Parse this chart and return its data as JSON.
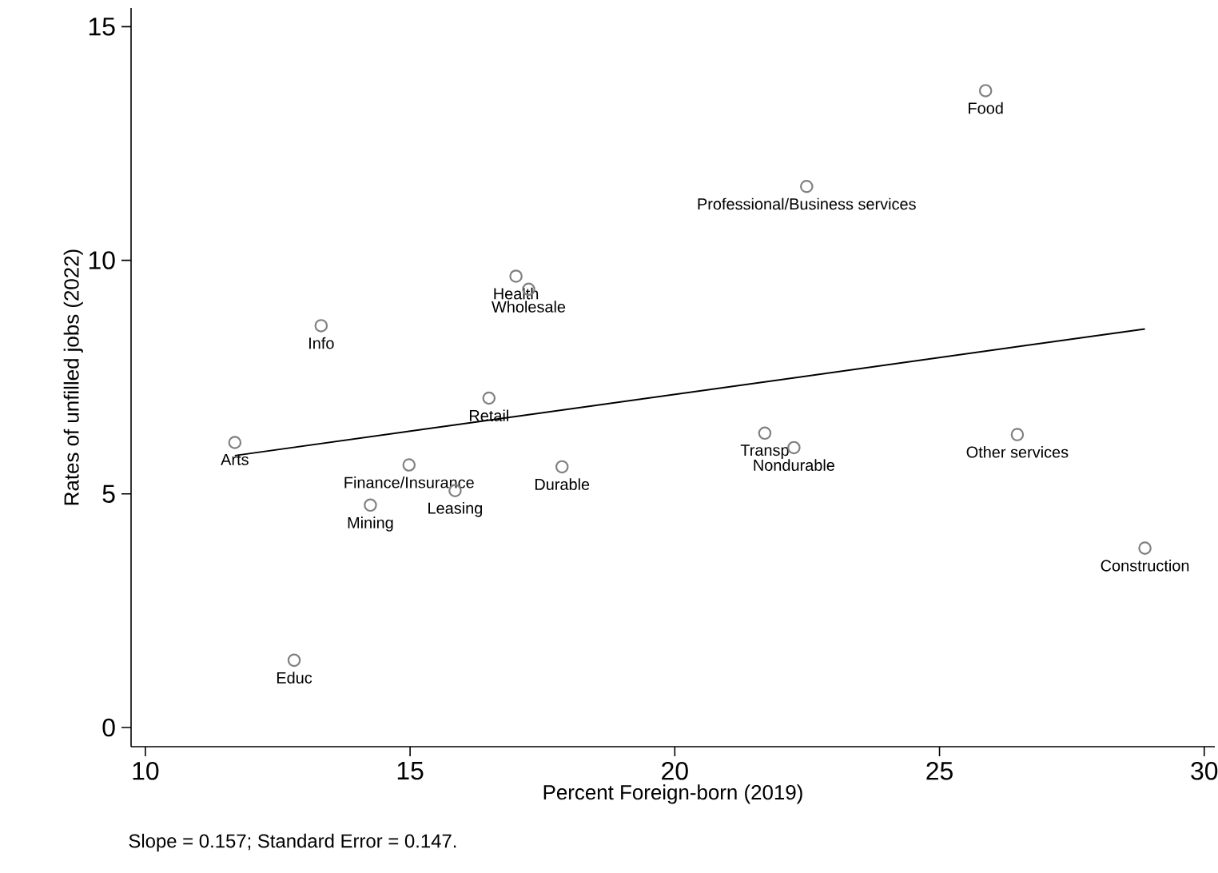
{
  "chart_data": {
    "type": "scatter",
    "xlabel": "Percent Foreign-born (2019)",
    "ylabel": "Rates of unfilled jobs (2022)",
    "xlim": [
      9.73,
      30.2
    ],
    "ylim": [
      -0.41,
      15.4
    ],
    "xticks": [
      10,
      15,
      20,
      25,
      30
    ],
    "yticks": [
      0,
      5,
      10,
      15
    ],
    "grid": false,
    "series": [
      {
        "marker": "circle",
        "color": "#808080",
        "x": [
          25.87,
          22.49,
          17.0,
          17.24,
          13.32,
          16.49,
          11.69,
          21.7,
          22.25,
          26.47,
          14.98,
          15.85,
          17.87,
          14.25,
          28.88,
          12.81
        ],
        "values": [
          13.63,
          11.58,
          9.66,
          9.38,
          8.6,
          7.05,
          6.1,
          6.3,
          5.99,
          6.27,
          5.62,
          5.07,
          5.58,
          4.76,
          3.84,
          1.44
        ]
      },
      {
        "type": "line",
        "color": "#000000",
        "x": [
          11.69,
          28.88
        ],
        "values": [
          5.82,
          8.53
        ]
      }
    ],
    "annotations": [
      {
        "text": "Food",
        "x": 25.87,
        "y": 13.63
      },
      {
        "text": "Professional/Business services",
        "x": 22.49,
        "y": 11.58
      },
      {
        "text": "Health",
        "x": 17.0,
        "y": 9.66
      },
      {
        "text": "Wholesale",
        "x": 17.24,
        "y": 9.38
      },
      {
        "text": "Info",
        "x": 13.32,
        "y": 8.6
      },
      {
        "text": "Retail",
        "x": 16.49,
        "y": 7.05
      },
      {
        "text": "Arts",
        "x": 11.69,
        "y": 6.1
      },
      {
        "text": "Transp",
        "x": 21.7,
        "y": 6.3
      },
      {
        "text": "Nondurable",
        "x": 22.25,
        "y": 5.99
      },
      {
        "text": "Other services",
        "x": 26.47,
        "y": 6.27
      },
      {
        "text": "Finance/Insurance",
        "x": 14.98,
        "y": 5.62
      },
      {
        "text": "Leasing",
        "x": 15.85,
        "y": 5.07
      },
      {
        "text": "Durable",
        "x": 17.87,
        "y": 5.58
      },
      {
        "text": "Mining",
        "x": 14.25,
        "y": 4.76
      },
      {
        "text": "Construction",
        "x": 28.88,
        "y": 3.84
      },
      {
        "text": "Educ",
        "x": 12.81,
        "y": 1.44
      },
      "Slope =     0.157; Standard Error =     0.147."
    ]
  }
}
